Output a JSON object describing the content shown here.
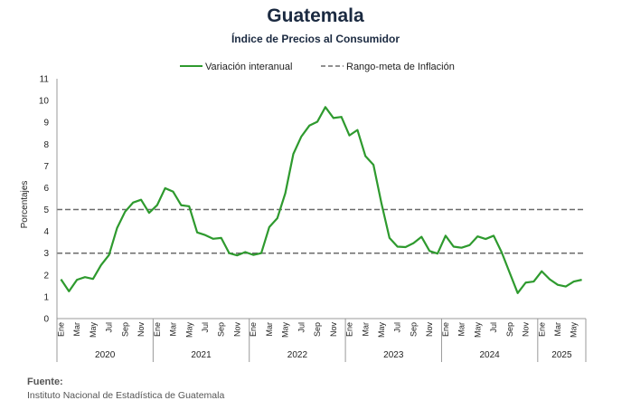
{
  "chart_data": {
    "type": "line",
    "title": "Guatemala",
    "subtitle": "Índice de Precios al Consumidor",
    "ylabel": "Porcentajes",
    "ylim": [
      0,
      11
    ],
    "yticks": [
      "0",
      "1",
      "2",
      "3",
      "4",
      "5",
      "6",
      "7",
      "8",
      "9",
      "10",
      "11"
    ],
    "month_labels": [
      "Ene",
      "Mar",
      "May",
      "Jul",
      "Sep",
      "Nov"
    ],
    "years": [
      "2020",
      "2021",
      "2022",
      "2023",
      "2024",
      "2025"
    ],
    "series": [
      {
        "name": "Variación interanual",
        "color": "#2e9a2e",
        "values": [
          1.8,
          1.25,
          1.78,
          1.9,
          1.82,
          2.45,
          2.92,
          4.15,
          4.9,
          5.32,
          5.45,
          4.85,
          5.2,
          5.98,
          5.82,
          5.2,
          5.15,
          3.95,
          3.83,
          3.66,
          3.7,
          3.0,
          2.9,
          3.05,
          2.92,
          3.0,
          4.2,
          4.6,
          5.75,
          7.55,
          8.35,
          8.85,
          9.03,
          9.7,
          9.2,
          9.25,
          8.4,
          8.65,
          7.45,
          7.05,
          5.28,
          3.7,
          3.3,
          3.28,
          3.46,
          3.75,
          3.1,
          2.98,
          3.8,
          3.3,
          3.25,
          3.37,
          3.77,
          3.65,
          3.8,
          3.04,
          2.1,
          1.17,
          1.65,
          1.7,
          2.17,
          1.8,
          1.55,
          1.47,
          1.7,
          1.78
        ]
      }
    ],
    "reference_lines": [
      {
        "name": "Rango-meta de Inflación",
        "values": [
          3,
          5
        ],
        "color": "#6b6b6b",
        "style": "dashed"
      }
    ]
  },
  "source": {
    "heading": "Fuente:",
    "text": "Instituto Nacional de Estadística de Guatemala"
  }
}
